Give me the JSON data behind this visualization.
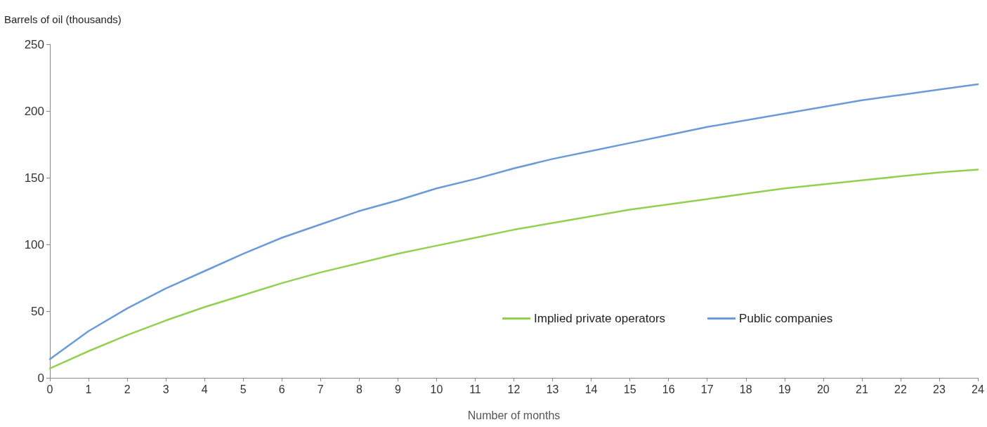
{
  "chart_data": {
    "type": "line",
    "ylabel": "Barrels of oil (thousands)",
    "xlabel": "Number of months",
    "x": [
      0,
      1,
      2,
      3,
      4,
      5,
      6,
      7,
      8,
      9,
      10,
      11,
      12,
      13,
      14,
      15,
      16,
      17,
      18,
      19,
      20,
      21,
      22,
      23,
      24
    ],
    "xlim": [
      0,
      24
    ],
    "xticks": [
      0,
      1,
      2,
      3,
      4,
      5,
      6,
      7,
      8,
      9,
      10,
      11,
      12,
      13,
      14,
      15,
      16,
      17,
      18,
      19,
      20,
      21,
      22,
      23,
      24
    ],
    "ylim": [
      0,
      250
    ],
    "yticks": [
      0,
      50,
      100,
      150,
      200,
      250
    ],
    "series": [
      {
        "name": "Implied private operators",
        "color": "#92d050",
        "values": [
          7,
          20,
          32,
          43,
          53,
          62,
          71,
          79,
          86,
          93,
          99,
          105,
          111,
          116,
          121,
          126,
          130,
          134,
          138,
          142,
          145,
          148,
          151,
          154,
          156
        ]
      },
      {
        "name": "Public companies",
        "color": "#6a9bd8",
        "values": [
          14,
          35,
          52,
          67,
          80,
          93,
          105,
          115,
          125,
          133,
          142,
          149,
          157,
          164,
          170,
          176,
          182,
          188,
          193,
          198,
          203,
          208,
          212,
          216,
          220
        ]
      }
    ],
    "grid": false,
    "legend": "bottom right",
    "marker": "none",
    "line_style": "solid"
  }
}
